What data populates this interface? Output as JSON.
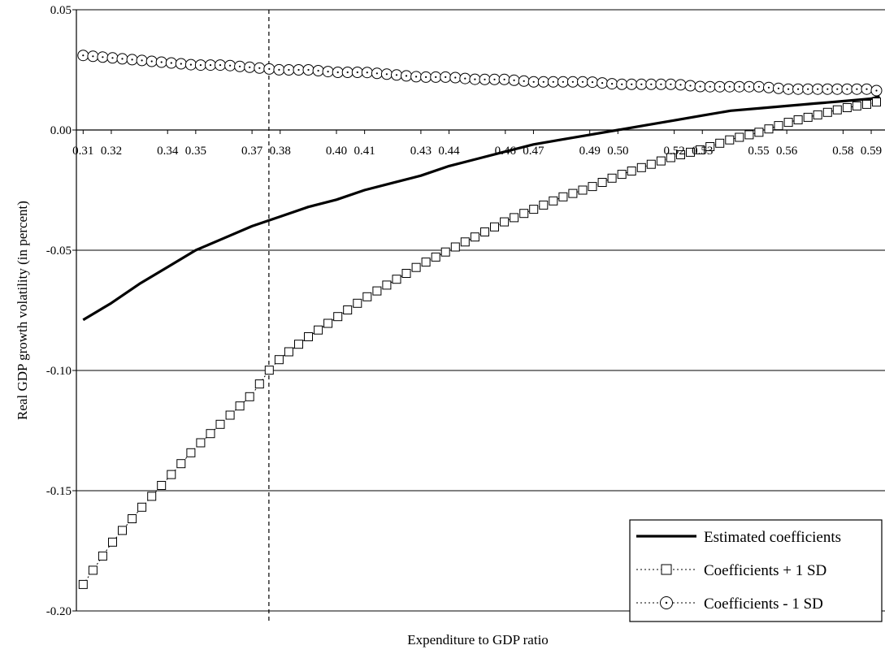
{
  "chart_data": {
    "type": "line",
    "title": "",
    "xlabel": "Expenditure to GDP ratio",
    "ylabel": "Real GDP growth volatility (in percent)",
    "xlim": [
      0.3076,
      0.5949
    ],
    "ylim": [
      -0.2,
      0.05
    ],
    "yticks": [
      0.05,
      0.0,
      -0.05,
      -0.1,
      -0.15,
      -0.2
    ],
    "ytick_labels": [
      "0.05",
      "0.00",
      "-0.05",
      "-0.10",
      "-0.15",
      "-0.20"
    ],
    "xticks": [
      0.31,
      0.32,
      0.34,
      0.35,
      0.37,
      0.38,
      0.4,
      0.41,
      0.43,
      0.44,
      0.46,
      0.47,
      0.49,
      0.5,
      0.52,
      0.53,
      0.55,
      0.56,
      0.58,
      0.59
    ],
    "xtick_labels": [
      "0.31",
      "0.32",
      "0.34",
      "0.35",
      "0.37",
      "0.38",
      "0.40",
      "0.41",
      "0.43",
      "0.44",
      "0.46",
      "0.47",
      "0.49",
      "0.50",
      "0.52",
      "0.53",
      "0.55",
      "0.56",
      "0.58",
      "0.59"
    ],
    "grid": "horizontal",
    "vertical_reference_line": {
      "x": 0.376,
      "style": "dashed"
    },
    "legend_position": "bottom-right",
    "series": [
      {
        "name": "Estimated coefficients",
        "style": "solid-thick",
        "color": "#000000",
        "points": [
          [
            0.31,
            -0.079
          ],
          [
            0.32,
            -0.072
          ],
          [
            0.33,
            -0.064
          ],
          [
            0.34,
            -0.057
          ],
          [
            0.35,
            -0.05
          ],
          [
            0.36,
            -0.045
          ],
          [
            0.37,
            -0.04
          ],
          [
            0.38,
            -0.036
          ],
          [
            0.39,
            -0.032
          ],
          [
            0.4,
            -0.029
          ],
          [
            0.41,
            -0.025
          ],
          [
            0.42,
            -0.022
          ],
          [
            0.43,
            -0.019
          ],
          [
            0.44,
            -0.015
          ],
          [
            0.45,
            -0.012
          ],
          [
            0.46,
            -0.009
          ],
          [
            0.47,
            -0.006
          ],
          [
            0.48,
            -0.004
          ],
          [
            0.49,
            -0.002
          ],
          [
            0.5,
            0.0
          ],
          [
            0.51,
            0.002
          ],
          [
            0.52,
            0.004
          ],
          [
            0.53,
            0.006
          ],
          [
            0.54,
            0.008
          ],
          [
            0.55,
            0.009
          ],
          [
            0.56,
            0.01
          ],
          [
            0.57,
            0.011
          ],
          [
            0.58,
            0.012
          ],
          [
            0.59,
            0.013
          ],
          [
            0.593,
            0.014
          ]
        ]
      },
      {
        "name": "Coefficients + 1 SD",
        "style": "dotted-square-markers",
        "color": "#000000",
        "points": [
          [
            0.31,
            -0.189
          ],
          [
            0.32,
            -0.172
          ],
          [
            0.33,
            -0.158
          ],
          [
            0.34,
            -0.145
          ],
          [
            0.35,
            -0.132
          ],
          [
            0.36,
            -0.121
          ],
          [
            0.37,
            -0.11
          ],
          [
            0.376,
            -0.1
          ],
          [
            0.38,
            -0.095
          ],
          [
            0.39,
            -0.086
          ],
          [
            0.4,
            -0.078
          ],
          [
            0.41,
            -0.07
          ],
          [
            0.42,
            -0.063
          ],
          [
            0.43,
            -0.056
          ],
          [
            0.44,
            -0.05
          ],
          [
            0.45,
            -0.044
          ],
          [
            0.46,
            -0.038
          ],
          [
            0.47,
            -0.033
          ],
          [
            0.48,
            -0.028
          ],
          [
            0.49,
            -0.024
          ],
          [
            0.5,
            -0.019
          ],
          [
            0.51,
            -0.015
          ],
          [
            0.52,
            -0.011
          ],
          [
            0.53,
            -0.008
          ],
          [
            0.54,
            -0.004
          ],
          [
            0.55,
            -0.001
          ],
          [
            0.56,
            0.003
          ],
          [
            0.57,
            0.006
          ],
          [
            0.58,
            0.009
          ],
          [
            0.59,
            0.011
          ],
          [
            0.593,
            0.012
          ]
        ]
      },
      {
        "name": "Coefficients - 1 SD",
        "style": "dotted-circle-markers",
        "color": "#000000",
        "points": [
          [
            0.31,
            0.031
          ],
          [
            0.32,
            0.03
          ],
          [
            0.33,
            0.029
          ],
          [
            0.34,
            0.028
          ],
          [
            0.35,
            0.027
          ],
          [
            0.36,
            0.027
          ],
          [
            0.37,
            0.026
          ],
          [
            0.38,
            0.025
          ],
          [
            0.39,
            0.025
          ],
          [
            0.4,
            0.024
          ],
          [
            0.41,
            0.024
          ],
          [
            0.42,
            0.023
          ],
          [
            0.43,
            0.022
          ],
          [
            0.44,
            0.022
          ],
          [
            0.45,
            0.021
          ],
          [
            0.46,
            0.021
          ],
          [
            0.47,
            0.02
          ],
          [
            0.48,
            0.02
          ],
          [
            0.49,
            0.02
          ],
          [
            0.5,
            0.019
          ],
          [
            0.51,
            0.019
          ],
          [
            0.52,
            0.019
          ],
          [
            0.53,
            0.018
          ],
          [
            0.54,
            0.018
          ],
          [
            0.55,
            0.018
          ],
          [
            0.56,
            0.017
          ],
          [
            0.57,
            0.017
          ],
          [
            0.58,
            0.017
          ],
          [
            0.59,
            0.017
          ],
          [
            0.593,
            0.016
          ]
        ]
      }
    ]
  }
}
